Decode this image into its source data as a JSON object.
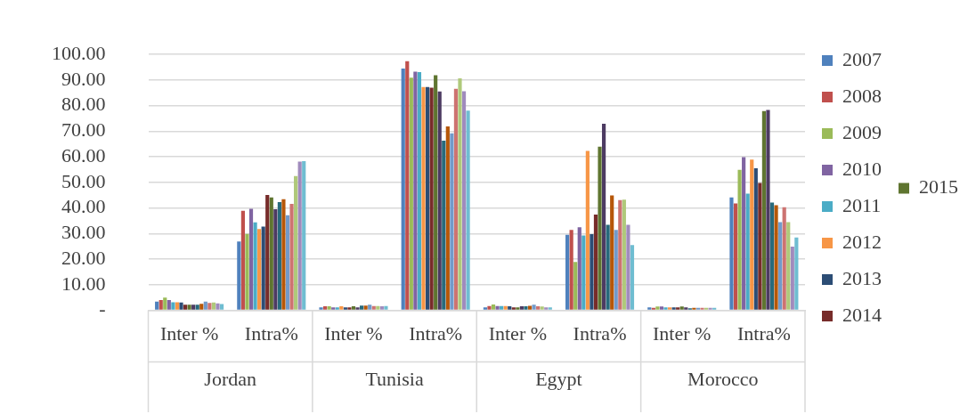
{
  "chart_data": {
    "type": "bar",
    "categories": [
      "Inter %",
      "Intra%",
      "Inter %",
      "Intra%",
      "Inter %",
      "Intra%",
      "Inter %",
      "Intra%"
    ],
    "annotations": [
      "Jordan",
      "Tunisia",
      "Egypt",
      "Morocco"
    ],
    "ylim": [
      0,
      100
    ],
    "yticks": [
      {
        "value": 0,
        "label": "-"
      },
      {
        "value": 10,
        "label": "10.00"
      },
      {
        "value": 20,
        "label": "20.00"
      },
      {
        "value": 30,
        "label": "30.00"
      },
      {
        "value": 40,
        "label": "40.00"
      },
      {
        "value": 50,
        "label": "50.00"
      },
      {
        "value": 60,
        "label": "60.00"
      },
      {
        "value": 70,
        "label": "70.00"
      },
      {
        "value": 80,
        "label": "80.00"
      },
      {
        "value": 90,
        "label": "90.00"
      },
      {
        "value": 100,
        "label": "100.00"
      }
    ],
    "grid": "y",
    "legend": "right",
    "series": [
      {
        "name": "2007",
        "color": "#4f81bd",
        "values": [
          3.4,
          26.9,
          1.2,
          94.5,
          1.2,
          29.5,
          1.2,
          44.1
        ]
      },
      {
        "name": "2008",
        "color": "#c0504d",
        "values": [
          4.0,
          38.9,
          1.6,
          97.4,
          1.7,
          31.4,
          1.0,
          41.8
        ]
      },
      {
        "name": "2009",
        "color": "#9bbb59",
        "values": [
          5.0,
          29.9,
          1.6,
          90.9,
          2.3,
          18.9,
          1.5,
          54.9
        ]
      },
      {
        "name": "2010",
        "color": "#8064a2",
        "values": [
          4.0,
          39.7,
          1.2,
          93.3,
          1.7,
          32.5,
          1.5,
          59.9
        ]
      },
      {
        "name": "2011",
        "color": "#4bacc6",
        "values": [
          3.2,
          34.4,
          1.2,
          93.1,
          1.7,
          29.3,
          1.2,
          45.6
        ]
      },
      {
        "name": "2012",
        "color": "#f79646",
        "values": [
          3.2,
          31.8,
          1.6,
          87.3,
          1.7,
          62.3,
          1.2,
          58.9
        ]
      },
      {
        "name": "2013",
        "color": "#2c4d75",
        "values": [
          3.1,
          32.7,
          1.2,
          87.3,
          1.6,
          29.8,
          1.2,
          55.5
        ]
      },
      {
        "name": "2014",
        "color": "#772c2a",
        "values": [
          2.2,
          45.1,
          1.2,
          87.0,
          1.2,
          37.4,
          1.2,
          49.8
        ]
      },
      {
        "name": "2015",
        "color": "#5f7530",
        "values": [
          2.2,
          44.1,
          1.6,
          91.9,
          1.2,
          64.0,
          1.5,
          77.9
        ]
      },
      {
        "color": "#4d3b62",
        "values": [
          2.2,
          39.5,
          1.2,
          85.5,
          1.6,
          72.9,
          1.2,
          78.3
        ]
      },
      {
        "color": "#276a7c",
        "values": [
          2.2,
          42.3,
          1.9,
          66.3,
          1.6,
          33.4,
          0.8,
          42.1
        ]
      },
      {
        "color": "#b65708",
        "values": [
          2.6,
          43.4,
          1.9,
          71.9,
          1.8,
          44.9,
          1.0,
          41.1
        ]
      },
      {
        "color": "#729aca",
        "values": [
          3.4,
          37.2,
          2.2,
          69.2,
          2.2,
          31.4,
          1.0,
          34.5
        ]
      },
      {
        "color": "#cd7371",
        "values": [
          2.9,
          41.6,
          1.7,
          86.6,
          1.6,
          43.1,
          1.0,
          40.3
        ]
      },
      {
        "color": "#afc97a",
        "values": [
          3.1,
          52.5,
          1.7,
          90.7,
          1.5,
          43.3,
          1.0,
          34.5
        ]
      },
      {
        "color": "#a08bbd",
        "values": [
          2.7,
          58.1,
          1.6,
          85.6,
          1.2,
          33.4,
          1.0,
          24.9
        ]
      },
      {
        "color": "#6fbdd1",
        "values": [
          2.5,
          58.3,
          1.7,
          78.1,
          1.2,
          25.5,
          1.0,
          28.5
        ]
      }
    ]
  }
}
